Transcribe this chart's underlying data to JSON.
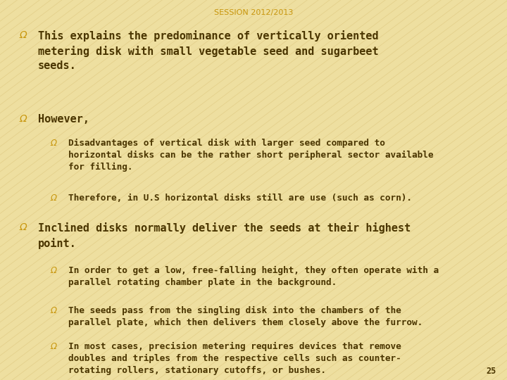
{
  "title": "SESSION 2012/2013",
  "title_color": "#c8960c",
  "title_fontsize": 8,
  "bg_color": "#eedfa0",
  "stripe_color": "#d4b86a",
  "text_color": "#4a3500",
  "bullet_color": "#c8960c",
  "page_number": "25",
  "bullet1": "This explains the predominance of vertically oriented\nmetering disk with small vegetable seed and sugarbeet\nseeds.",
  "bullet2": "However,",
  "sub_bullet1": "Disadvantages of vertical disk with larger seed compared to\nhorizontal disks can be the rather short peripheral sector available\nfor filling.",
  "sub_bullet2": "Therefore, in U.S horizontal disks still are use (such as corn).",
  "bullet3": "Inclined disks normally deliver the seeds at their highest\npoint.",
  "sub_bullet3": "In order to get a low, free-falling height, they often operate with a\nparallel rotating chamber plate in the background.",
  "sub_bullet4": "The seeds pass from the singling disk into the chambers of the\nparallel plate, which then delivers them closely above the furrow.",
  "sub_bullet5": "In most cases, precision metering requires devices that remove\ndoubles and triples from the respective cells such as counter-\nrotating rollers, stationary cutoffs, or bushes."
}
